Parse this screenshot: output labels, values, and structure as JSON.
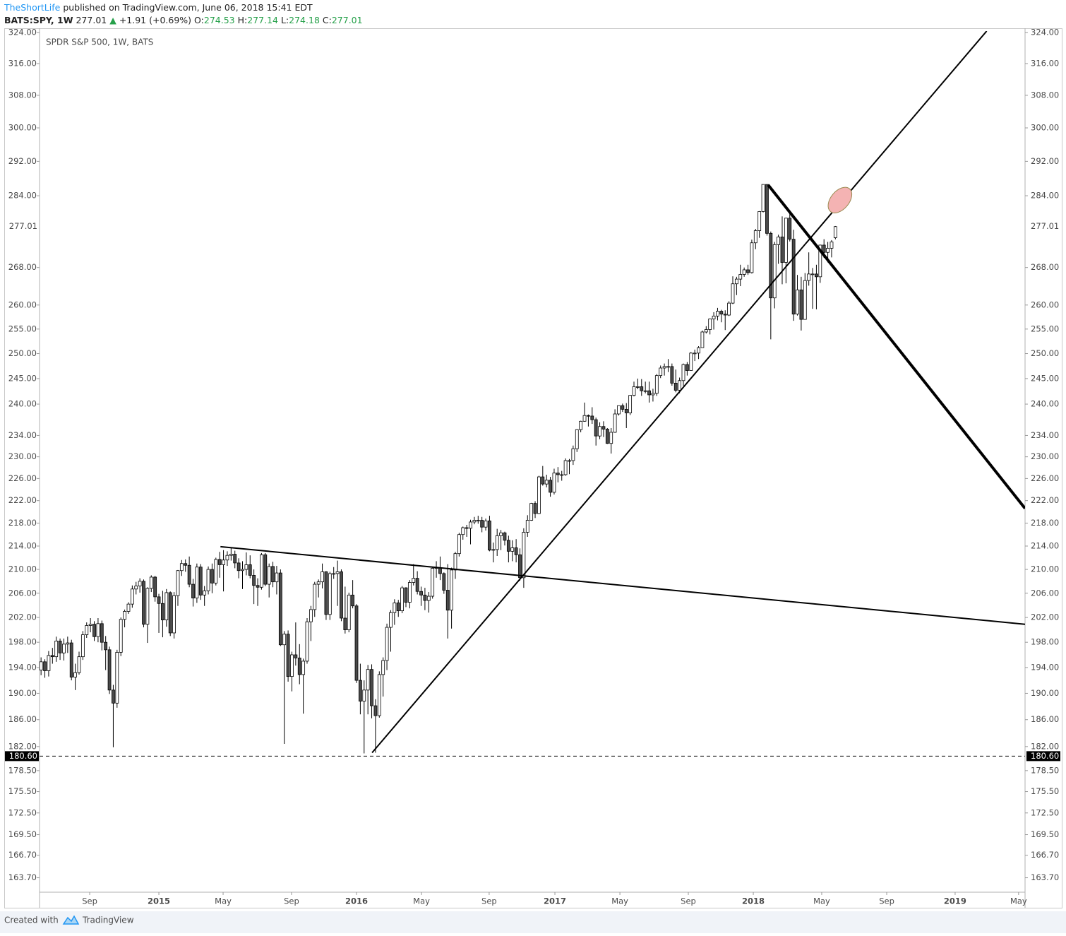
{
  "header": {
    "author": "TheShortLife",
    "published": "published on TradingView.com, June 06, 2018 15:41 EDT",
    "symbol": "BATS:SPY, 1W",
    "change": "+1.91 (+0.69%)",
    "o_label": "O:",
    "h_label": "H:",
    "l_label": "L:",
    "c_label": "C:"
  },
  "chart_data": {
    "type": "candlestick",
    "title": "SPDR S&P 500, 1W, BATS",
    "open": [
      193.6,
      194.9,
      193.5,
      195.9,
      195.7,
      198.2,
      196.3,
      197.7,
      197.9,
      192.5,
      193.2,
      195.7,
      199.2,
      200.7,
      200.9,
      198.9,
      201.0,
      198.0,
      196.8,
      190.5,
      188.5,
      196.4,
      201.7,
      203.0,
      204.2,
      206.7,
      207.2,
      208.0,
      200.9,
      206.8,
      208.7,
      205.4,
      204.3,
      201.6,
      206.1,
      199.5,
      205.6,
      209.8,
      211.0,
      210.7,
      207.5,
      205.2,
      210.4,
      205.7,
      206.4,
      210.0,
      207.7,
      211.7,
      210.8,
      211.6,
      212.4,
      212.6,
      211.1,
      209.8,
      210.0,
      210.8,
      209.0,
      207.3,
      207.0,
      212.5,
      207.5,
      210.5,
      207.9,
      209.4,
      197.6,
      199.3,
      192.6,
      196.0,
      195.5,
      192.9,
      195.0,
      201.3,
      203.3,
      207.5,
      207.9,
      209.6,
      202.5,
      209.3,
      209.3,
      209.6,
      201.9,
      200.0,
      205.7,
      203.9,
      192.0,
      188.8,
      190.5,
      193.7,
      188.1,
      186.6,
      192.9,
      195.1,
      200.4,
      202.8,
      204.4,
      203.1,
      206.9,
      204.5,
      207.8,
      208.5,
      206.3,
      205.7,
      204.8,
      205.5,
      210.2,
      210.3,
      209.3,
      206.5,
      203.2,
      209.9,
      212.7,
      216.0,
      217.2,
      217.1,
      218.2,
      218.5,
      218.5,
      217.3,
      218.4,
      213.3,
      213.4,
      215.8,
      216.3,
      215.0,
      213.1,
      213.7,
      212.5,
      208.6,
      216.4,
      218.5,
      221.5,
      219.7,
      226.3,
      225.0,
      225.7,
      223.5,
      227.0,
      226.7,
      226.7,
      229.3,
      229.3,
      231.5,
      235.1,
      236.7,
      237.8,
      237.7,
      237.0,
      233.9,
      235.7,
      235.2,
      232.5,
      234.6,
      238.1,
      239.7,
      239.0,
      238.3,
      241.7,
      243.4,
      243.4,
      242.6,
      242.6,
      241.8,
      242.1,
      245.6,
      247.1,
      247.4,
      247.4,
      244.1,
      242.7,
      244.6,
      247.8,
      246.6,
      250.1,
      250.1,
      251.2,
      254.4,
      254.9,
      257.1,
      257.7,
      258.7,
      258.1,
      257.9,
      260.4,
      264.5,
      265.5,
      266.5,
      267.5,
      266.9,
      273.4,
      276.1,
      280.4,
      286.6,
      275.5,
      261.5,
      273.0,
      274.7,
      269.1,
      278.9,
      274.2,
      258.1,
      263.2,
      257.0,
      265.2,
      266.6,
      266.6,
      266.0,
      272.9,
      271.3,
      272.2,
      274.53
    ],
    "high": [
      195.6,
      195.3,
      196.6,
      197.1,
      198.9,
      198.6,
      198.6,
      198.9,
      198.4,
      194.6,
      196.5,
      199.8,
      201.2,
      201.9,
      201.4,
      201.9,
      201.5,
      199.0,
      197.3,
      191.3,
      196.8,
      202.0,
      203.3,
      204.5,
      207.3,
      207.9,
      208.5,
      208.3,
      207.0,
      209.0,
      208.9,
      205.9,
      206.4,
      206.7,
      206.3,
      206.2,
      209.9,
      211.6,
      211.7,
      212.2,
      208.4,
      211.0,
      210.9,
      207.2,
      210.5,
      211.0,
      212.0,
      213.0,
      213.3,
      213.1,
      213.8,
      213.2,
      211.9,
      211.4,
      212.9,
      212.4,
      210.0,
      208.5,
      212.8,
      212.8,
      211.0,
      211.3,
      210.6,
      210.0,
      199.8,
      199.9,
      196.5,
      201.2,
      197.7,
      195.4,
      201.9,
      203.9,
      207.9,
      208.3,
      211.0,
      209.7,
      209.6,
      210.4,
      211.5,
      210.0,
      207.1,
      206.1,
      208.2,
      204.2,
      194.6,
      192.0,
      194.4,
      194.5,
      189.1,
      193.4,
      195.6,
      201.0,
      203.2,
      205.0,
      204.9,
      207.2,
      207.0,
      208.2,
      210.9,
      209.7,
      207.1,
      206.9,
      206.2,
      210.3,
      211.4,
      212.2,
      209.5,
      210.9,
      210.3,
      213.0,
      216.3,
      217.4,
      217.7,
      218.6,
      219.1,
      219.3,
      219.1,
      218.8,
      219.3,
      214.6,
      217.0,
      216.8,
      216.5,
      215.8,
      215.0,
      215.2,
      213.6,
      217.1,
      219.4,
      221.6,
      221.9,
      226.5,
      228.3,
      226.7,
      226.3,
      227.8,
      228.1,
      227.4,
      229.7,
      229.6,
      232.1,
      235.2,
      236.8,
      240.3,
      238.0,
      239.4,
      237.4,
      236.5,
      236.7,
      235.4,
      235.4,
      239.0,
      239.7,
      240.1,
      240.2,
      241.8,
      244.4,
      245.0,
      244.9,
      244.4,
      244.4,
      243.0,
      245.9,
      247.6,
      248.0,
      248.9,
      248.0,
      246.8,
      245.2,
      248.0,
      248.3,
      250.3,
      250.8,
      251.5,
      254.7,
      255.6,
      257.2,
      258.5,
      259.4,
      259.0,
      258.9,
      260.8,
      266.1,
      266.0,
      268.6,
      268.0,
      268.6,
      274.1,
      276.5,
      280.5,
      286.6,
      286.6,
      275.9,
      273.6,
      275.2,
      279.3,
      279.0,
      280.1,
      276.3,
      266.4,
      266.0,
      266.8,
      271.3,
      267.9,
      268.6,
      273.0,
      274.2,
      273.6,
      274.0,
      277.14
    ],
    "low": [
      192.8,
      192.4,
      192.6,
      194.6,
      194.9,
      195.2,
      195.1,
      196.3,
      192.0,
      190.5,
      192.9,
      195.2,
      198.7,
      199.6,
      198.2,
      198.0,
      196.7,
      193.6,
      189.9,
      181.9,
      187.8,
      195.8,
      200.4,
      202.6,
      203.6,
      205.8,
      206.1,
      200.4,
      197.9,
      206.2,
      204.6,
      199.5,
      198.8,
      200.5,
      199.0,
      198.6,
      203.9,
      208.9,
      209.6,
      207.0,
      203.8,
      204.4,
      204.9,
      203.9,
      205.8,
      206.0,
      207.3,
      208.6,
      206.3,
      210.6,
      211.5,
      210.2,
      208.5,
      206.7,
      209.0,
      208.5,
      204.2,
      203.9,
      206.6,
      207.2,
      205.3,
      207.0,
      205.8,
      197.4,
      182.4,
      191.8,
      190.3,
      194.3,
      191.4,
      186.9,
      194.6,
      198.2,
      202.1,
      205.3,
      206.8,
      201.6,
      201.6,
      208.4,
      203.9,
      201.4,
      199.4,
      199.6,
      203.5,
      191.6,
      186.8,
      181.0,
      186.8,
      186.2,
      181.1,
      186.3,
      189.5,
      193.6,
      196.5,
      200.8,
      202.1,
      202.7,
      203.7,
      203.5,
      207.3,
      205.8,
      203.9,
      203.2,
      202.8,
      205.1,
      208.6,
      208.2,
      205.9,
      198.6,
      200.2,
      208.4,
      212.2,
      215.1,
      215.6,
      214.3,
      217.8,
      217.9,
      216.4,
      216.7,
      213.1,
      211.2,
      212.3,
      213.3,
      214.1,
      211.2,
      211.4,
      211.2,
      208.1,
      206.9,
      215.6,
      218.4,
      218.9,
      219.6,
      224.7,
      224.4,
      222.7,
      223.1,
      225.3,
      225.6,
      226.5,
      226.8,
      228.5,
      230.9,
      234.6,
      236.6,
      235.7,
      236.2,
      232.1,
      233.3,
      233.7,
      232.4,
      230.6,
      234.5,
      237.8,
      238.5,
      235.4,
      237.9,
      241.5,
      242.9,
      241.6,
      242.1,
      240.3,
      240.5,
      241.6,
      245.1,
      245.6,
      246.3,
      243.6,
      242.3,
      242.1,
      243.6,
      245.6,
      246.6,
      248.5,
      248.9,
      251.2,
      254.1,
      253.9,
      254.9,
      256.8,
      256.4,
      254.8,
      257.7,
      260.2,
      262.1,
      264.0,
      266.0,
      266.4,
      266.7,
      272.0,
      274.5,
      280.2,
      275.0,
      252.9,
      259.3,
      268.8,
      264.4,
      264.6,
      273.7,
      256.7,
      257.8,
      254.7,
      257.0,
      264.1,
      259.2,
      259.1,
      264.7,
      270.1,
      269.1,
      270.2,
      274.18
    ],
    "close": [
      194.9,
      193.5,
      195.9,
      195.7,
      198.2,
      196.3,
      197.7,
      197.9,
      192.5,
      193.2,
      195.7,
      199.2,
      200.7,
      200.9,
      198.9,
      201.0,
      198.0,
      196.8,
      190.5,
      188.5,
      196.4,
      201.7,
      203.0,
      204.2,
      206.7,
      207.2,
      208.0,
      200.9,
      206.8,
      208.7,
      205.4,
      204.3,
      201.6,
      206.1,
      199.5,
      205.6,
      209.8,
      211.0,
      210.7,
      207.5,
      205.2,
      210.4,
      205.7,
      206.4,
      210.0,
      207.7,
      211.7,
      210.8,
      211.6,
      212.4,
      212.6,
      211.1,
      209.8,
      210.0,
      210.8,
      209.0,
      207.3,
      207.0,
      212.5,
      207.5,
      210.5,
      207.9,
      209.4,
      197.6,
      199.3,
      192.6,
      196.0,
      195.5,
      192.9,
      195.0,
      201.3,
      203.3,
      207.5,
      207.9,
      209.6,
      202.5,
      209.3,
      209.3,
      209.6,
      201.9,
      200.0,
      205.7,
      203.9,
      192.0,
      188.8,
      190.5,
      193.7,
      188.1,
      186.6,
      192.9,
      195.1,
      200.4,
      202.8,
      204.4,
      203.1,
      206.9,
      204.5,
      207.8,
      208.5,
      206.3,
      205.7,
      204.8,
      205.5,
      210.2,
      210.3,
      209.3,
      206.5,
      203.2,
      209.9,
      212.7,
      216.0,
      217.2,
      217.1,
      218.2,
      218.5,
      218.5,
      217.3,
      218.4,
      213.3,
      213.4,
      215.8,
      216.3,
      215.0,
      213.1,
      213.7,
      212.5,
      208.6,
      216.4,
      218.5,
      221.5,
      219.7,
      226.3,
      225.0,
      225.7,
      223.5,
      227.0,
      226.7,
      226.7,
      229.3,
      229.3,
      231.5,
      235.1,
      236.7,
      237.8,
      237.7,
      237.0,
      233.9,
      235.7,
      235.2,
      232.5,
      234.6,
      238.1,
      239.7,
      239.0,
      238.3,
      241.7,
      243.4,
      243.4,
      242.6,
      242.6,
      241.8,
      242.1,
      245.6,
      247.1,
      247.4,
      247.4,
      244.1,
      242.7,
      244.6,
      247.8,
      246.6,
      250.1,
      250.1,
      251.2,
      254.4,
      254.9,
      257.1,
      257.7,
      258.7,
      258.1,
      257.9,
      260.4,
      264.5,
      265.5,
      266.5,
      267.5,
      266.9,
      273.4,
      276.1,
      280.4,
      286.6,
      275.5,
      261.5,
      273.0,
      274.7,
      269.1,
      278.9,
      274.2,
      258.1,
      263.2,
      257.0,
      265.2,
      266.6,
      266.6,
      266.0,
      272.9,
      271.3,
      272.2,
      273.6,
      277.01
    ],
    "up_color": "#ffffff",
    "down_color": "#4a4a4a",
    "outline_color": "#000000",
    "xlim": [
      -0.4,
      258.9
    ],
    "xticks": [
      {
        "value": 12.8,
        "label": "Sep"
      },
      {
        "value": 31.0,
        "label": "2015"
      },
      {
        "value": 47.9,
        "label": "May"
      },
      {
        "value": 65.9,
        "label": "Sep"
      },
      {
        "value": 83.0,
        "label": "2016"
      },
      {
        "value": 100.1,
        "label": "May"
      },
      {
        "value": 117.9,
        "label": "Sep"
      },
      {
        "value": 135.2,
        "label": "2017"
      },
      {
        "value": 152.3,
        "label": "May"
      },
      {
        "value": 170.3,
        "label": "Sep"
      },
      {
        "value": 187.4,
        "label": "2018"
      },
      {
        "value": 205.4,
        "label": "May"
      },
      {
        "value": 222.5,
        "label": "Sep"
      },
      {
        "value": 240.5,
        "label": "2019"
      },
      {
        "value": 257.2,
        "label": "May"
      }
    ],
    "ylim": [
      161.8,
      324.4
    ],
    "log_y": true,
    "yticks": [
      {
        "value": 324,
        "label": "324.00"
      },
      {
        "value": 316,
        "label": "316.00"
      },
      {
        "value": 308,
        "label": "308.00"
      },
      {
        "value": 300,
        "label": "300.00"
      },
      {
        "value": 292,
        "label": "292.00"
      },
      {
        "value": 284,
        "label": "284.00"
      },
      {
        "value": 268,
        "label": "268.00"
      },
      {
        "value": 260,
        "label": "260.00"
      },
      {
        "value": 255,
        "label": "255.00"
      },
      {
        "value": 250,
        "label": "250.00"
      },
      {
        "value": 245,
        "label": "245.00"
      },
      {
        "value": 240,
        "label": "240.00"
      },
      {
        "value": 234,
        "label": "234.00"
      },
      {
        "value": 230,
        "label": "230.00"
      },
      {
        "value": 226,
        "label": "226.00"
      },
      {
        "value": 222,
        "label": "222.00"
      },
      {
        "value": 218,
        "label": "218.00"
      },
      {
        "value": 214,
        "label": "214.00"
      },
      {
        "value": 210,
        "label": "210.00"
      },
      {
        "value": 206,
        "label": "206.00"
      },
      {
        "value": 202,
        "label": "202.00"
      },
      {
        "value": 198,
        "label": "198.00"
      },
      {
        "value": 194,
        "label": "194.00"
      },
      {
        "value": 190,
        "label": "190.00"
      },
      {
        "value": 186,
        "label": "186.00"
      },
      {
        "value": 182,
        "label": "182.00"
      },
      {
        "value": 178.5,
        "label": "178.50"
      },
      {
        "value": 175.5,
        "label": "175.50"
      },
      {
        "value": 172.5,
        "label": "172.50"
      },
      {
        "value": 169.5,
        "label": "169.50"
      },
      {
        "value": 166.7,
        "label": "166.70"
      },
      {
        "value": 163.7,
        "label": "163.70"
      }
    ],
    "hline": {
      "value": 180.6,
      "label": "180.60"
    },
    "trend_lines": [
      {
        "x": [
          47.2,
          258.9
        ],
        "y": [
          213.9,
          200.9
        ],
        "line_width": 2
      },
      {
        "x": [
          87.1,
          248.8
        ],
        "y": [
          181.1,
          324.4
        ],
        "line_width": 2
      },
      {
        "x": [
          191.3,
          258.9
        ],
        "y": [
          286.5,
          220.6
        ],
        "line_width": 4
      }
    ],
    "highlight": {
      "x": 210.2,
      "y": 283.0,
      "color": "#f4b3b3"
    }
  },
  "footer": {
    "text": "Created with",
    "brand": "TradingView"
  }
}
